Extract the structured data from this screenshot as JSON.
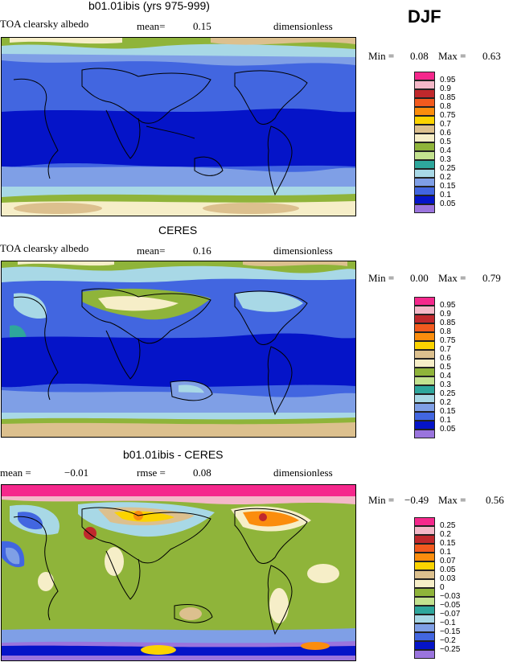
{
  "season": "DJF",
  "panels": [
    {
      "title": "b01.01ibis (yrs 975-999)",
      "left_label": "TOA clearsky albedo",
      "mid_label": "mean=",
      "mid_value": "0.15",
      "right_label": "dimensionless",
      "min_label": "Min =",
      "min_value": "0.08",
      "max_label": "Max =",
      "max_value": "0.63",
      "legend": {
        "labels": [
          "0.95",
          "0.9",
          "0.85",
          "0.8",
          "0.75",
          "0.7",
          "0.6",
          "0.5",
          "0.4",
          "0.3",
          "0.25",
          "0.2",
          "0.15",
          "0.1",
          "0.05"
        ],
        "colors": [
          "#f5288c",
          "#f4b8c8",
          "#c0282c",
          "#f25a1e",
          "#fb8d0d",
          "#fbd300",
          "#dcc08e",
          "#f6eec8",
          "#8fb43a",
          "#c3e28f",
          "#2ea79c",
          "#a8d8e6",
          "#7f9fe6",
          "#4266e0",
          "#0514c8",
          "#9a74dd"
        ]
      }
    },
    {
      "title": "CERES",
      "left_label": "TOA clearsky albedo",
      "mid_label": "mean=",
      "mid_value": "0.16",
      "right_label": "dimensionless",
      "min_label": "Min =",
      "min_value": "0.00",
      "max_label": "Max =",
      "max_value": "0.79",
      "legend": {
        "labels": [
          "0.95",
          "0.9",
          "0.85",
          "0.8",
          "0.75",
          "0.7",
          "0.6",
          "0.5",
          "0.4",
          "0.3",
          "0.25",
          "0.2",
          "0.15",
          "0.1",
          "0.05"
        ],
        "colors": [
          "#f5288c",
          "#f4b8c8",
          "#c0282c",
          "#f25a1e",
          "#fb8d0d",
          "#fbd300",
          "#dcc08e",
          "#f6eec8",
          "#8fb43a",
          "#c3e28f",
          "#2ea79c",
          "#a8d8e6",
          "#7f9fe6",
          "#4266e0",
          "#0514c8",
          "#9a74dd"
        ]
      }
    },
    {
      "title": "b01.01ibis - CERES",
      "left_label": "mean =",
      "left_value": "−0.01",
      "mid_label": "rmse =",
      "mid_value": "0.08",
      "right_label": "dimensionless",
      "min_label": "Min =",
      "min_value": "−0.49",
      "max_label": "Max =",
      "max_value": "0.56",
      "legend": {
        "labels": [
          "0.25",
          "0.2",
          "0.15",
          "0.1",
          "0.07",
          "0.05",
          "0.03",
          "0",
          "−0.03",
          "−0.05",
          "−0.07",
          "−0.1",
          "−0.15",
          "−0.2",
          "−0.25"
        ],
        "colors": [
          "#f5288c",
          "#f4b8c8",
          "#c0282c",
          "#f25a1e",
          "#fb8d0d",
          "#fbd300",
          "#dcc08e",
          "#f6eec8",
          "#8fb43a",
          "#c3e28f",
          "#2ea79c",
          "#a8d8e6",
          "#7f9fe6",
          "#4266e0",
          "#0514c8",
          "#9a74dd"
        ]
      }
    }
  ]
}
